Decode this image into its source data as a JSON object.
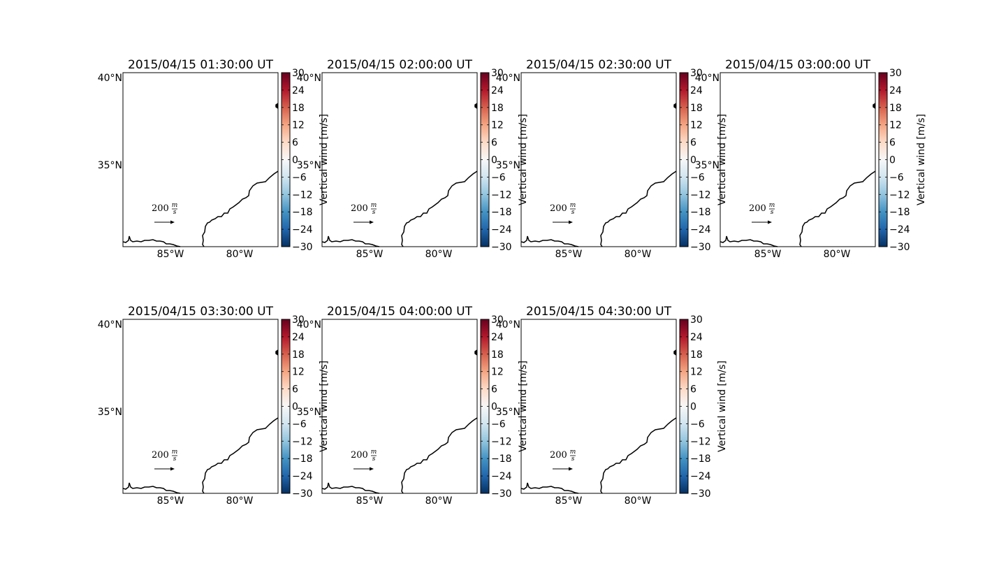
{
  "figure": {
    "panels": [
      {
        "title": "2015/04/15 01:30:00 UT"
      },
      {
        "title": "2015/04/15 02:00:00 UT"
      },
      {
        "title": "2015/04/15 02:30:00 UT"
      },
      {
        "title": "2015/04/15 03:00:00 UT"
      },
      {
        "title": "2015/04/15 03:30:00 UT"
      },
      {
        "title": "2015/04/15 04:00:00 UT"
      },
      {
        "title": "2015/04/15 04:30:00 UT"
      }
    ],
    "lat_ticks": [
      "40°N",
      "35°N"
    ],
    "lon_ticks": [
      "85°W",
      "80°W"
    ],
    "colorbar": {
      "label": "Vertical wind [m/s]",
      "ticks": [
        "30",
        "24",
        "18",
        "12",
        "6",
        "0",
        "−6",
        "−12",
        "−18",
        "−24",
        "−30"
      ],
      "range": [
        -30,
        30
      ],
      "colormap": "RdBu_r",
      "color_top": "#67001f",
      "color_mid": "#f7f7f7",
      "color_bottom": "#053061"
    },
    "reference_arrow": {
      "value": "200",
      "unit_numerator": "m",
      "unit_denominator": "s"
    },
    "map_extent": {
      "lon": [
        -88.3,
        -77.2
      ],
      "lat": [
        30.3,
        40.3
      ]
    }
  }
}
